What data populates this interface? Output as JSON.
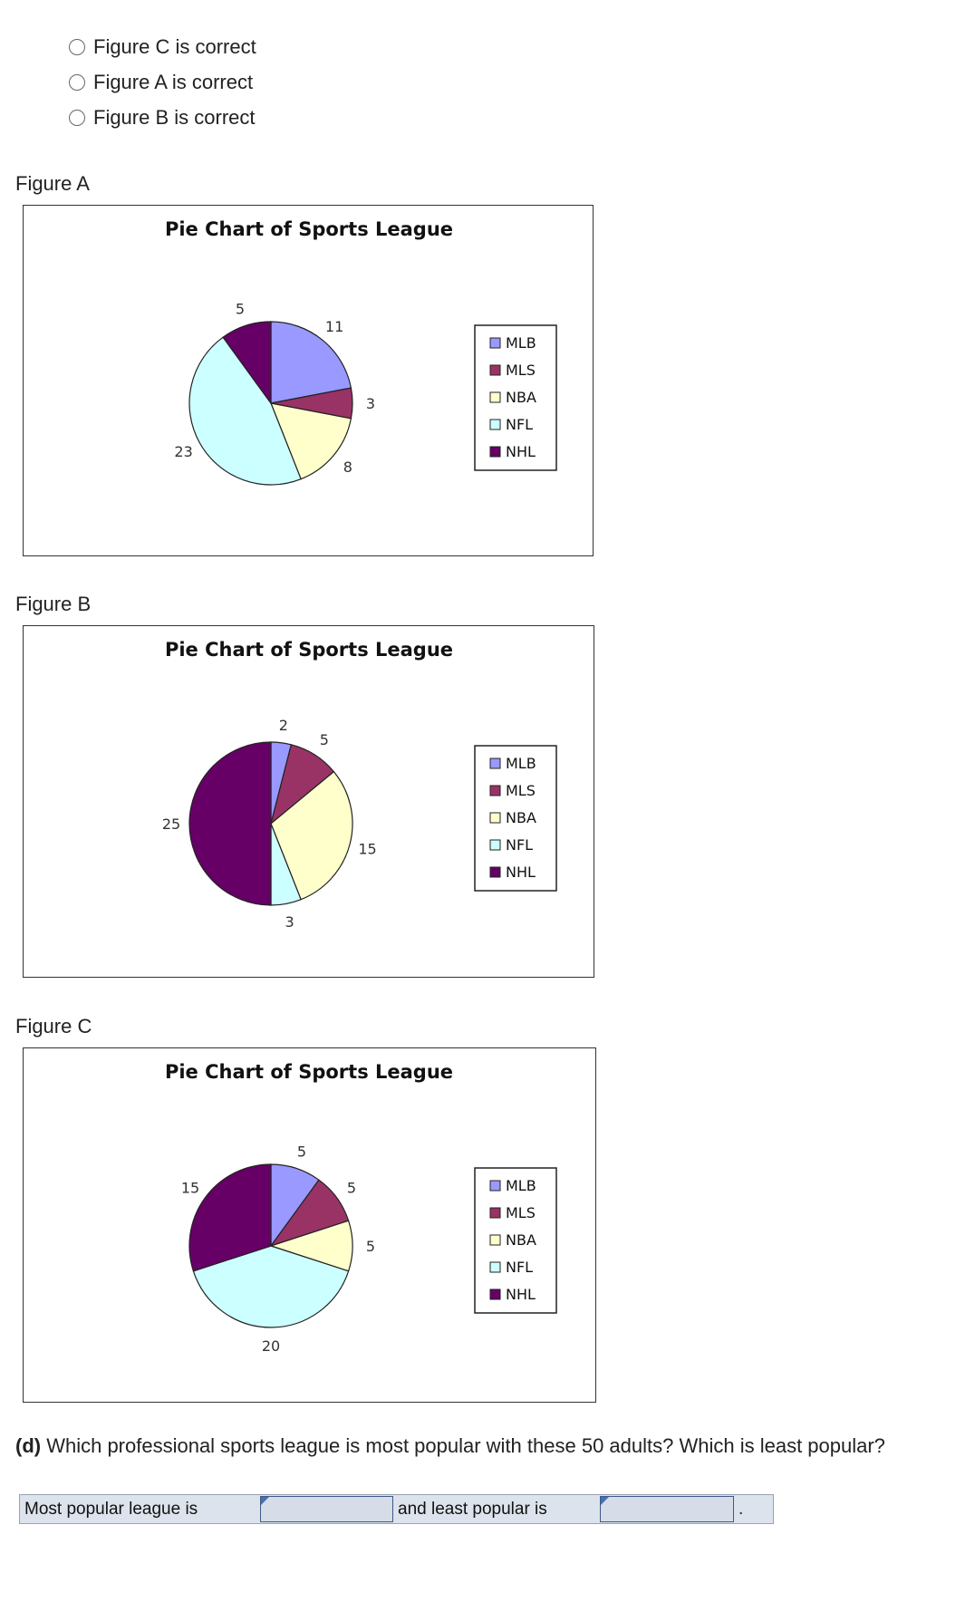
{
  "options": [
    {
      "label": "Figure C is correct"
    },
    {
      "label": "Figure A is correct"
    },
    {
      "label": "Figure B is correct"
    }
  ],
  "figures": [
    {
      "label": "Figure A"
    },
    {
      "label": "Figure B"
    },
    {
      "label": "Figure C"
    }
  ],
  "colors": {
    "MLB": "#9999ff",
    "MLS": "#993366",
    "NBA": "#ffffcc",
    "NFL": "#ccffff",
    "NHL": "#660066"
  },
  "chart_data": [
    {
      "type": "pie",
      "title": "Pie Chart of Sports League",
      "categories": [
        "MLB",
        "MLS",
        "NBA",
        "NFL",
        "NHL"
      ],
      "values": [
        11,
        3,
        8,
        23,
        5
      ],
      "legend": "right"
    },
    {
      "type": "pie",
      "title": "Pie Chart of Sports League",
      "categories": [
        "MLB",
        "MLS",
        "NBA",
        "NFL",
        "NHL"
      ],
      "values": [
        2,
        5,
        15,
        3,
        25
      ],
      "legend": "right"
    },
    {
      "type": "pie",
      "title": "Pie Chart of Sports League",
      "categories": [
        "MLB",
        "MLS",
        "NBA",
        "NFL",
        "NHL"
      ],
      "values": [
        5,
        5,
        5,
        20,
        15
      ],
      "legend": "right"
    }
  ],
  "question": {
    "prefix": "(d)",
    "text": " Which professional sports league is most popular with these 50 adults? Which is least popular?"
  },
  "answer": {
    "most_label": "Most popular league is",
    "most_value": "",
    "least_label": "and least popular is",
    "least_value": "",
    "end": "."
  }
}
